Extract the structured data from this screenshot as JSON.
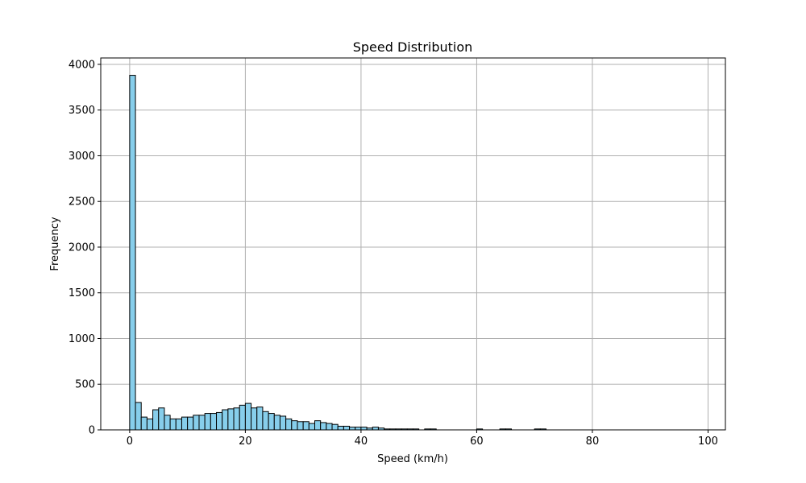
{
  "chart_data": {
    "type": "bar",
    "title": "Speed Distribution",
    "xlabel": "Speed (km/h)",
    "ylabel": "Frequency",
    "xlim": [
      -5,
      103
    ],
    "ylim": [
      0,
      4070
    ],
    "grid": true,
    "bar_color": "#87ceeb",
    "bar_edge_color": "#000000",
    "grid_color": "#b0b0b0",
    "xticks": [
      0,
      20,
      40,
      60,
      80,
      100
    ],
    "yticks": [
      0,
      500,
      1000,
      1500,
      2000,
      2500,
      3000,
      3500,
      4000
    ],
    "bin_edges": [
      0,
      1,
      2,
      3,
      4,
      5,
      6,
      7,
      8,
      9,
      10,
      11,
      12,
      13,
      14,
      15,
      16,
      17,
      18,
      19,
      20,
      21,
      22,
      23,
      24,
      25,
      26,
      27,
      28,
      29,
      30,
      31,
      32,
      33,
      34,
      35,
      36,
      37,
      38,
      39,
      40,
      41,
      42,
      43,
      44,
      45,
      46,
      47,
      48,
      49,
      50,
      51,
      52,
      53,
      54,
      55,
      56,
      57,
      58,
      59,
      60,
      61,
      62,
      63,
      64,
      65,
      66,
      67,
      68,
      69,
      70,
      71,
      72,
      73,
      74,
      75,
      76,
      77,
      78,
      79,
      80,
      81,
      82,
      83,
      84,
      85,
      86,
      87,
      88,
      89,
      90,
      91,
      92,
      93,
      94,
      95,
      96,
      97,
      98
    ],
    "values": [
      3880,
      300,
      140,
      120,
      220,
      240,
      160,
      120,
      120,
      140,
      140,
      160,
      160,
      180,
      180,
      190,
      220,
      230,
      240,
      270,
      290,
      240,
      250,
      200,
      180,
      160,
      150,
      120,
      100,
      90,
      90,
      70,
      100,
      80,
      70,
      60,
      40,
      40,
      30,
      30,
      30,
      20,
      30,
      20,
      10,
      10,
      10,
      10,
      10,
      10,
      0,
      10,
      10,
      0,
      0,
      0,
      0,
      0,
      0,
      0,
      10,
      0,
      0,
      0,
      10,
      10,
      0,
      0,
      0,
      0,
      10,
      10,
      0,
      0,
      0,
      0,
      0,
      0,
      0,
      0,
      0,
      0,
      0,
      0,
      0,
      0,
      0,
      0,
      0,
      0,
      0,
      0,
      0,
      0,
      0,
      0,
      0,
      0
    ]
  }
}
